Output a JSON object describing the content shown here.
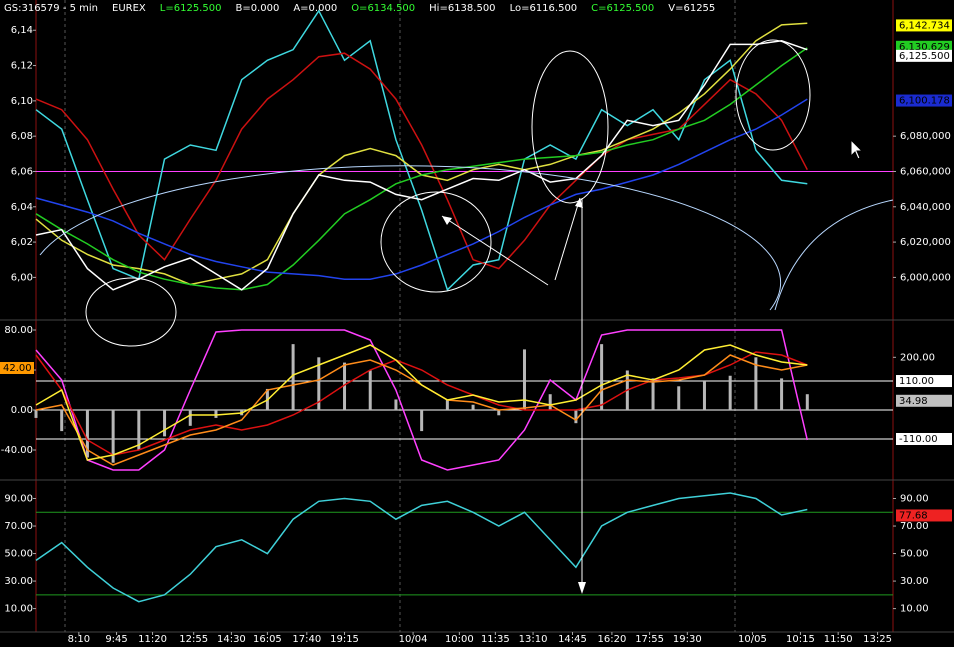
{
  "chart_data": [
    {
      "type": "line",
      "header": [
        {
          "text": "GS:316579 - 5 min",
          "color": "#ffffff"
        },
        {
          "text": "EUREX",
          "color": "#ffffff"
        },
        {
          "text": "L=6125.500",
          "color": "#33ff33"
        },
        {
          "text": "B=0.000",
          "color": "#ffffff"
        },
        {
          "text": "A=0.000",
          "color": "#ffffff"
        },
        {
          "text": "O=6134.500",
          "color": "#33ff33"
        },
        {
          "text": "Hi=6138.500",
          "color": "#ffffff"
        },
        {
          "text": "Lo=6116.500",
          "color": "#ffffff"
        },
        {
          "text": "C=6125.500",
          "color": "#33ff33"
        },
        {
          "text": "V=61255",
          "color": "#ffffff"
        }
      ],
      "x": [
        0,
        1.5,
        3,
        4.5,
        6,
        7.5,
        9,
        10.5,
        12,
        13.5,
        15,
        16.5,
        18,
        19.5,
        21,
        22.5,
        24,
        25.5,
        27,
        28.5,
        30,
        31.5,
        33,
        34.5,
        36,
        37.5,
        39,
        40.5,
        42,
        43.5,
        45
      ],
      "xlim": [
        0,
        50
      ],
      "ylim": [
        5977,
        6156
      ],
      "yticks": [
        {
          "value": 6140,
          "label": "6,14"
        },
        {
          "value": 6120,
          "label": "6,12"
        },
        {
          "value": 6100,
          "label": "6,10"
        },
        {
          "value": 6080,
          "label": "6,08"
        },
        {
          "value": 6060,
          "label": "6,06"
        },
        {
          "value": 6040,
          "label": "6,04"
        },
        {
          "value": 6020,
          "label": "6,02"
        },
        {
          "value": 6000,
          "label": "6,00"
        }
      ],
      "y2lim": [
        5977,
        6156
      ],
      "y2ticks": [
        {
          "value": 6080,
          "label": "6,080,000"
        },
        {
          "value": 6060,
          "label": "6,060,000"
        },
        {
          "value": 6040,
          "label": "6,040,000"
        },
        {
          "value": 6020,
          "label": "6,020,000"
        },
        {
          "value": 6000,
          "label": "6,000,000"
        }
      ],
      "hlines": [
        {
          "value": 6060,
          "color": "#ff40ff"
        }
      ],
      "series": [
        {
          "color": "#3fd8e0",
          "values": [
            6095,
            6084,
            6044,
            6005,
            5999,
            6067,
            6075,
            6072,
            6112,
            6123,
            6129,
            6151,
            6123,
            6134,
            6078,
            6038,
            5993,
            6007,
            6010,
            6067,
            6075,
            6067,
            6095,
            6086,
            6095,
            6078,
            6112,
            6123,
            6072,
            6055,
            6053
          ]
        },
        {
          "color": "#cc1111",
          "values": [
            6101,
            6095,
            6078,
            6050,
            6024,
            6010,
            6033,
            6055,
            6084,
            6101,
            6112,
            6125,
            6127,
            6118,
            6101,
            6075,
            6044,
            6010,
            6005,
            6021,
            6041,
            6055,
            6069,
            6078,
            6081,
            6084,
            6098,
            6112,
            6104,
            6089,
            6061
          ]
        },
        {
          "color": "#e0e040",
          "values": [
            6033,
            6021,
            6013,
            6007,
            6005,
            6002,
            5996,
            5999,
            6002,
            6010,
            6036,
            6058,
            6069,
            6073,
            6069,
            6058,
            6055,
            6061,
            6064,
            6061,
            6064,
            6069,
            6072,
            6078,
            6084,
            6093,
            6104,
            6118,
            6134,
            6143,
            6144
          ]
        },
        {
          "color": "#22cc22",
          "values": [
            6036,
            6027,
            6019,
            6010,
            6003,
            5999,
            5996,
            5994,
            5993,
            5996,
            6007,
            6021,
            6036,
            6044,
            6053,
            6058,
            6061,
            6063,
            6065,
            6067,
            6068,
            6069,
            6071,
            6075,
            6078,
            6084,
            6089,
            6098,
            6109,
            6120,
            6130
          ]
        },
        {
          "color": "#2244ee",
          "values": [
            6045,
            6041,
            6037,
            6032,
            6025,
            6019,
            6013,
            6009,
            6006,
            6003,
            6002,
            6001,
            5999,
            5999,
            6002,
            6007,
            6013,
            6019,
            6026,
            6034,
            6041,
            6047,
            6050,
            6054,
            6058,
            6064,
            6071,
            6078,
            6084,
            6092,
            6101
          ]
        },
        {
          "color": "#ffffff",
          "values": [
            6024,
            6027,
            6005,
            5993,
            5999,
            6006,
            6011,
            6002,
            5993,
            6005,
            6036,
            6058,
            6055,
            6054,
            6047,
            6044,
            6050,
            6056,
            6055,
            6061,
            6054,
            6056,
            6069,
            6089,
            6086,
            6089,
            6109,
            6132,
            6132,
            6134,
            6129
          ]
        }
      ],
      "tags": [
        {
          "value": 6142.734,
          "label": "6,142.734",
          "color": "#ffff00",
          "text_color": "#000000",
          "side": "right"
        },
        {
          "value": 6130.629,
          "label": "6,130.629",
          "color": "#22cc22",
          "text_color": "#000000",
          "side": "right"
        },
        {
          "value": 6125.5,
          "label": "6,125.500",
          "color": "#ffffff",
          "text_color": "#000000",
          "side": "right"
        },
        {
          "value": 6100.178,
          "label": "6,100.178",
          "color": "#1a2bd0",
          "text_color": "#000000",
          "side": "right"
        }
      ]
    },
    {
      "type": "line",
      "x": [
        0,
        1.5,
        3,
        4.5,
        6,
        7.5,
        9,
        10.5,
        12,
        13.5,
        15,
        16.5,
        18,
        19.5,
        21,
        22.5,
        24,
        25.5,
        27,
        28.5,
        30,
        31.5,
        33,
        34.5,
        36,
        37.5,
        39,
        40.5,
        42,
        43.5,
        45
      ],
      "xlim": [
        0,
        50
      ],
      "ylim": [
        -68,
        88
      ],
      "yticks": [
        {
          "value": 80,
          "label": "80.00"
        },
        {
          "value": 40,
          "label": "40.00"
        },
        {
          "value": 0,
          "label": "0.00"
        },
        {
          "value": -40,
          "label": "-40.00"
        }
      ],
      "y2lim": [
        -258,
        334
      ],
      "y2ticks": [
        {
          "value": 200,
          "label": "200.00"
        }
      ],
      "hlines": [
        {
          "value": 110,
          "axis": "y2",
          "color": "#ffffff"
        },
        {
          "value": 0,
          "axis": "y2",
          "color": "#ffffff"
        },
        {
          "value": -110,
          "axis": "y2",
          "color": "#ffffff"
        }
      ],
      "series": [
        {
          "type": "bar",
          "axis": "y2",
          "color": "#b8b8b8",
          "values": [
            -30,
            -80,
            -180,
            -200,
            -150,
            -100,
            -60,
            -30,
            -20,
            80,
            250,
            200,
            180,
            150,
            40,
            -80,
            40,
            20,
            -20,
            230,
            60,
            -50,
            250,
            150,
            120,
            90,
            110,
            130,
            200,
            120,
            60
          ]
        },
        {
          "color": "#ff40ff",
          "values": [
            60,
            30,
            -50,
            -60,
            -60,
            -40,
            20,
            78,
            80,
            80,
            80,
            80,
            80,
            70,
            20,
            -50,
            -60,
            -55,
            -50,
            -20,
            30,
            10,
            75,
            80,
            80,
            80,
            80,
            80,
            80,
            80,
            -30
          ]
        },
        {
          "color": "#dd1111",
          "values": [
            55,
            20,
            -30,
            -45,
            -40,
            -30,
            -20,
            -15,
            -20,
            -15,
            -5,
            8,
            25,
            40,
            50,
            40,
            25,
            15,
            5,
            0,
            0,
            0,
            5,
            20,
            30,
            32,
            35,
            45,
            58,
            55,
            45
          ]
        },
        {
          "color": "#ff8c1a",
          "values": [
            0,
            5,
            -40,
            -55,
            -45,
            -35,
            -25,
            -20,
            -10,
            20,
            25,
            30,
            45,
            50,
            40,
            25,
            10,
            8,
            0,
            2,
            5,
            -10,
            20,
            30,
            28,
            30,
            35,
            55,
            45,
            40,
            45
          ]
        },
        {
          "color": "#ffee33",
          "values": [
            5,
            20,
            -50,
            -45,
            -35,
            -20,
            -5,
            -5,
            -3,
            10,
            35,
            45,
            55,
            65,
            50,
            25,
            10,
            15,
            8,
            10,
            5,
            10,
            25,
            35,
            30,
            40,
            60,
            65,
            55,
            48,
            45
          ]
        }
      ],
      "tags": [
        {
          "value": 42,
          "label": "42.00",
          "color": "#ff9900",
          "text_color": "#000000",
          "side": "left"
        },
        {
          "value": 110,
          "axis": "y2",
          "label": "110.00",
          "color": "#ffffff",
          "text_color": "#000000",
          "side": "right"
        },
        {
          "value": 34.98,
          "axis": "y2",
          "label": "34.98",
          "color": "#c0c0c0",
          "text_color": "#000000",
          "side": "right"
        },
        {
          "value": -110,
          "axis": "y2",
          "label": "-110.00",
          "color": "#ffffff",
          "text_color": "#000000",
          "side": "right"
        }
      ]
    },
    {
      "type": "line",
      "x": [
        0,
        1.5,
        3,
        4.5,
        6,
        7.5,
        9,
        10.5,
        12,
        13.5,
        15,
        16.5,
        18,
        19.5,
        21,
        22.5,
        24,
        25.5,
        27,
        28.5,
        30,
        31.5,
        33,
        34.5,
        36,
        37.5,
        39,
        40.5,
        42,
        43.5,
        45
      ],
      "xlim": [
        0,
        50
      ],
      "xticks": [
        {
          "value": 2.5,
          "label": "8:10"
        },
        {
          "value": 4.7,
          "label": "9:45"
        },
        {
          "value": 6.8,
          "label": "11:20"
        },
        {
          "value": 9.2,
          "label": "12:55"
        },
        {
          "value": 11.4,
          "label": "14:30"
        },
        {
          "value": 13.5,
          "label": "16:05"
        },
        {
          "value": 15.8,
          "label": "17:40"
        },
        {
          "value": 18,
          "label": "19:15"
        },
        {
          "value": 22,
          "label": "10/04"
        },
        {
          "value": 24.7,
          "label": "10:00"
        },
        {
          "value": 26.8,
          "label": "11:35"
        },
        {
          "value": 29,
          "label": "13:10"
        },
        {
          "value": 31.3,
          "label": "14:45"
        },
        {
          "value": 33.6,
          "label": "16:20"
        },
        {
          "value": 35.8,
          "label": "17:55"
        },
        {
          "value": 38,
          "label": "19:30"
        },
        {
          "value": 41.8,
          "label": "10/05"
        },
        {
          "value": 44.6,
          "label": "10:15"
        },
        {
          "value": 46.8,
          "label": "11:50"
        },
        {
          "value": 49.1,
          "label": "13:25"
        }
      ],
      "ylim": [
        -7,
        102
      ],
      "yticks": [
        {
          "value": 90,
          "label": "90.00"
        },
        {
          "value": 70,
          "label": "70.00"
        },
        {
          "value": 50,
          "label": "50.00"
        },
        {
          "value": 30,
          "label": "30.00"
        },
        {
          "value": 10,
          "label": "10.00"
        }
      ],
      "y2lim": [
        -7,
        102
      ],
      "y2ticks": [
        {
          "value": 90,
          "label": "90.00"
        },
        {
          "value": 70,
          "label": "70.00"
        },
        {
          "value": 50,
          "label": "50.00"
        },
        {
          "value": 30,
          "label": "30.00"
        },
        {
          "value": 10,
          "label": "10.00"
        }
      ],
      "hlines": [
        {
          "value": 80,
          "color": "#1f9a1f"
        },
        {
          "value": 20,
          "color": "#1f9a1f"
        }
      ],
      "series": [
        {
          "color": "#3fd0d8",
          "values": [
            45,
            58,
            40,
            25,
            15,
            20,
            35,
            55,
            60,
            50,
            75,
            88,
            90,
            88,
            75,
            85,
            88,
            80,
            70,
            80,
            60,
            40,
            70,
            80,
            85,
            90,
            92,
            94,
            90,
            78,
            82
          ]
        }
      ],
      "tags": [
        {
          "value": 77.68,
          "label": "77.68",
          "color": "#ee2222",
          "text_color": "#000000",
          "side": "right"
        }
      ]
    }
  ]
}
